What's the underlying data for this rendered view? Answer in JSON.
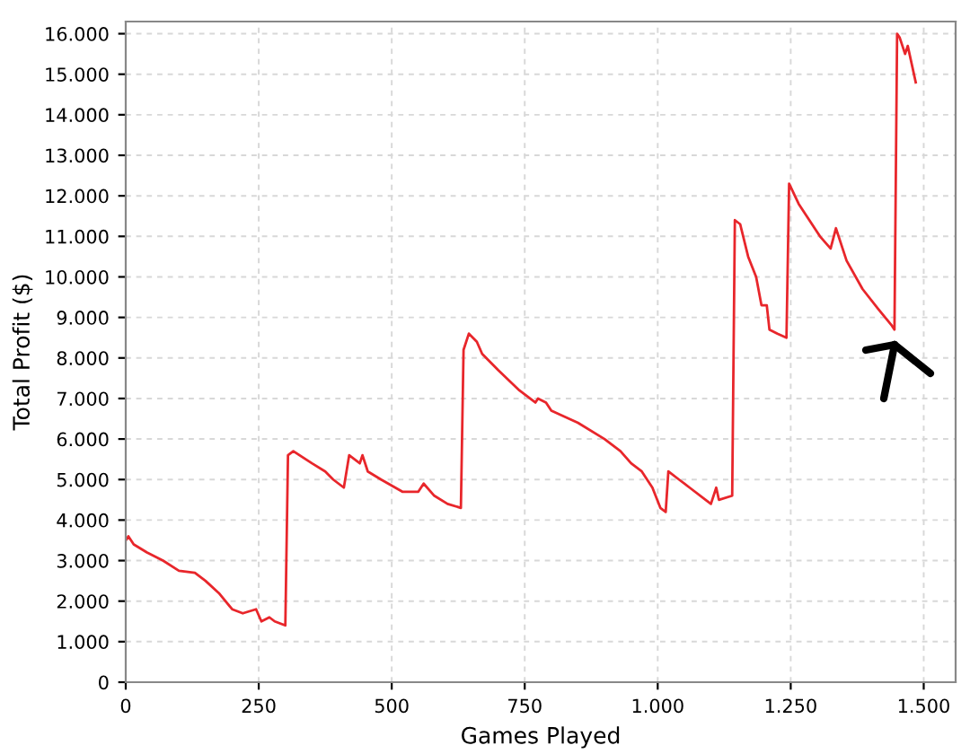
{
  "chart_data": {
    "type": "line",
    "xlabel": "Games Played",
    "ylabel": "Total Profit ($)",
    "grid": true,
    "marker": "none",
    "line_style": "solid",
    "xlim": [
      0,
      1560
    ],
    "ylim": [
      0,
      16300
    ],
    "xticks": [
      0,
      250,
      500,
      750,
      {
        "value": 1000,
        "label": "1.000"
      },
      {
        "value": 1250,
        "label": "1.250"
      },
      {
        "value": 1500,
        "label": "1.500"
      }
    ],
    "yticks": [
      0,
      {
        "value": 1000,
        "label": "1.000"
      },
      {
        "value": 2000,
        "label": "2.000"
      },
      {
        "value": 3000,
        "label": "3.000"
      },
      {
        "value": 4000,
        "label": "4.000"
      },
      {
        "value": 5000,
        "label": "5.000"
      },
      {
        "value": 6000,
        "label": "6.000"
      },
      {
        "value": 7000,
        "label": "7.000"
      },
      {
        "value": 8000,
        "label": "8.000"
      },
      {
        "value": 9000,
        "label": "9.000"
      },
      {
        "value": 10000,
        "label": "10.000"
      },
      {
        "value": 11000,
        "label": "11.000"
      },
      {
        "value": 12000,
        "label": "12.000"
      },
      {
        "value": 13000,
        "label": "13.000"
      },
      {
        "value": 14000,
        "label": "14.000"
      },
      {
        "value": 15000,
        "label": "15.000"
      },
      {
        "value": 16000,
        "label": "16.000"
      }
    ],
    "x": [
      0,
      5,
      15,
      40,
      70,
      100,
      130,
      150,
      175,
      200,
      220,
      245,
      255,
      270,
      280,
      300,
      305,
      315,
      350,
      375,
      390,
      410,
      420,
      440,
      445,
      455,
      480,
      520,
      550,
      560,
      580,
      605,
      630,
      635,
      645,
      660,
      670,
      700,
      740,
      770,
      775,
      790,
      800,
      850,
      900,
      930,
      950,
      970,
      990,
      1005,
      1015,
      1020,
      1040,
      1060,
      1090,
      1100,
      1110,
      1115,
      1140,
      1145,
      1155,
      1170,
      1185,
      1195,
      1205,
      1210,
      1225,
      1242,
      1247,
      1265,
      1285,
      1305,
      1325,
      1335,
      1355,
      1385,
      1415,
      1440,
      1445,
      1450,
      1455,
      1465,
      1470,
      1485
    ],
    "series": [
      {
        "color": "#e8262b",
        "values": [
          3500,
          3600,
          3400,
          3200,
          3000,
          2750,
          2700,
          2500,
          2200,
          1800,
          1700,
          1800,
          1500,
          1600,
          1500,
          1400,
          5600,
          5700,
          5400,
          5200,
          5000,
          4800,
          5600,
          5400,
          5600,
          5200,
          5000,
          4700,
          4700,
          4900,
          4600,
          4400,
          4300,
          8200,
          8600,
          8400,
          8100,
          7700,
          7200,
          6900,
          7000,
          6900,
          6700,
          6400,
          6000,
          5700,
          5400,
          5200,
          4800,
          4300,
          4200,
          5200,
          5000,
          4800,
          4500,
          4400,
          4800,
          4500,
          4600,
          11400,
          11300,
          10500,
          10000,
          9300,
          9300,
          8700,
          8600,
          8500,
          12300,
          11800,
          11400,
          11000,
          10700,
          11200,
          10400,
          9700,
          9200,
          8800,
          8700,
          16000,
          15900,
          15500,
          15700,
          14800
        ]
      }
    ]
  }
}
